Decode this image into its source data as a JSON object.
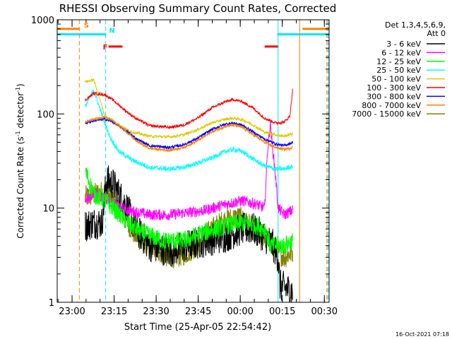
{
  "chart_data": {
    "type": "line",
    "title": "RHESSI Observing Summary Count Rates, Corrected",
    "xlabel": "Start Time (25-Apr-05 22:54:42)",
    "ylabel_main": "Corrected Count Rate (s",
    "ylabel_sup1": "-1",
    "ylabel_mid": " detector",
    "ylabel_sup2": "-1",
    "ylabel_end": ")",
    "yscale": "log",
    "ylim": [
      1,
      1000
    ],
    "x_unit": "minutes since 22:54:42",
    "xlim": [
      0,
      97
    ],
    "y_ticks": [
      {
        "value": 1,
        "label": "1"
      },
      {
        "value": 10,
        "label": "10"
      },
      {
        "value": 100,
        "label": "100"
      },
      {
        "value": 1000,
        "label": "1000"
      }
    ],
    "x_ticks": [
      {
        "t": 5.3,
        "label": "23:00"
      },
      {
        "t": 20.3,
        "label": "23:15"
      },
      {
        "t": 35.3,
        "label": "23:30"
      },
      {
        "t": 50.3,
        "label": "23:45"
      },
      {
        "t": 65.3,
        "label": "00:00"
      },
      {
        "t": 80.3,
        "label": "00:15"
      },
      {
        "t": 95.3,
        "label": "00:30"
      }
    ],
    "legend_header": [
      "Det 1,3,4,5,6,9,",
      "Att 0"
    ],
    "footer_date": "16-Oct-2021 07:18",
    "annotations": [
      {
        "label": "S",
        "color": "#ff8000",
        "x": 9.5
      },
      {
        "label": "N",
        "color": "#00e5ff",
        "x": 18.5
      },
      {
        "label": "F",
        "color": "#ff0000",
        "x": 18.8
      }
    ],
    "flags": [
      {
        "name": "S",
        "color": "#ff8000",
        "y": 800,
        "segments": [
          [
            0,
            8
          ],
          [
            87.5,
            97
          ]
        ]
      },
      {
        "name": "N",
        "color": "#00e5ff",
        "y": 700,
        "segments": [
          [
            0,
            17.5
          ],
          [
            78.5,
            97
          ]
        ]
      },
      {
        "name": "F",
        "color": "#ff0000",
        "y": 520,
        "segments": [
          [
            18.3,
            23.3
          ],
          [
            74,
            79
          ]
        ]
      }
    ],
    "vlines": [
      {
        "x": 7.9,
        "color": "#ff8000",
        "dash": true
      },
      {
        "x": 17.3,
        "color": "#00e5ff",
        "dash": true
      },
      {
        "x": 78.8,
        "color": "#00e5ff",
        "dash": false
      },
      {
        "x": 86.5,
        "color": "#ff8000",
        "dash": false
      },
      {
        "x": 96.2,
        "color": "#ff8000",
        "dash": true
      },
      {
        "x": 96.6,
        "color": "#00e5ff",
        "dash": true
      }
    ],
    "series": [
      {
        "name": "3 - 6 keV",
        "color": "#000000",
        "noise": 0.35,
        "points": [
          [
            10,
            6.5
          ],
          [
            13,
            7
          ],
          [
            16,
            7
          ],
          [
            17.5,
            20
          ],
          [
            20,
            18
          ],
          [
            25,
            10
          ],
          [
            28,
            6
          ],
          [
            33,
            4
          ],
          [
            40,
            3.5
          ],
          [
            47,
            4
          ],
          [
            53,
            4.5
          ],
          [
            60,
            5
          ],
          [
            66,
            6
          ],
          [
            70,
            6
          ],
          [
            74,
            5
          ],
          [
            77,
            4
          ],
          [
            78.8,
            3
          ],
          [
            79.5,
            1.5
          ],
          [
            84,
            1.3
          ]
        ]
      },
      {
        "name": "6 - 12 keV",
        "color": "#ff00ff",
        "noise": 0.12,
        "points": [
          [
            10,
            12
          ],
          [
            13,
            14
          ],
          [
            17,
            13
          ],
          [
            20,
            11
          ],
          [
            25,
            9.5
          ],
          [
            33,
            8.5
          ],
          [
            40,
            8.5
          ],
          [
            47,
            9
          ],
          [
            53,
            9.5
          ],
          [
            60,
            11
          ],
          [
            66,
            12
          ],
          [
            71,
            11
          ],
          [
            74,
            10
          ],
          [
            75,
            40
          ],
          [
            76,
            80
          ],
          [
            78,
            20
          ],
          [
            78.8,
            10
          ],
          [
            81,
            8.5
          ],
          [
            84,
            9.5
          ]
        ]
      },
      {
        "name": "12 - 25 keV",
        "color": "#00ff00",
        "noise": 0.2,
        "points": [
          [
            10,
            25
          ],
          [
            13,
            14
          ],
          [
            17,
            12
          ],
          [
            20,
            10
          ],
          [
            25,
            7
          ],
          [
            30,
            5.5
          ],
          [
            38,
            4.5
          ],
          [
            45,
            4.5
          ],
          [
            52,
            5.5
          ],
          [
            60,
            6.5
          ],
          [
            66,
            7
          ],
          [
            71,
            6.5
          ],
          [
            74,
            6
          ],
          [
            76,
            4
          ],
          [
            78.8,
            4
          ],
          [
            81,
            4
          ],
          [
            84,
            4.5
          ]
        ]
      },
      {
        "name": "25 - 50 keV",
        "color": "#00ffff",
        "noise": 0.05,
        "points": [
          [
            10,
            120
          ],
          [
            13,
            180
          ],
          [
            15,
            120
          ],
          [
            17,
            80
          ],
          [
            19,
            55
          ],
          [
            22,
            40
          ],
          [
            27,
            32
          ],
          [
            33,
            27
          ],
          [
            40,
            26
          ],
          [
            45,
            27
          ],
          [
            50,
            30
          ],
          [
            55,
            34
          ],
          [
            60,
            40
          ],
          [
            63,
            42
          ],
          [
            66,
            40
          ],
          [
            70,
            33
          ],
          [
            74,
            28
          ],
          [
            78,
            26
          ],
          [
            81,
            26
          ],
          [
            84,
            28
          ]
        ]
      },
      {
        "name": "50 - 100 keV",
        "color": "#ddcc00",
        "noise": 0.03,
        "points": [
          [
            10,
            220
          ],
          [
            13,
            230
          ],
          [
            15,
            150
          ],
          [
            17,
            95
          ],
          [
            19,
            85
          ],
          [
            22,
            75
          ],
          [
            27,
            64
          ],
          [
            33,
            58
          ],
          [
            40,
            57
          ],
          [
            45,
            60
          ],
          [
            50,
            68
          ],
          [
            55,
            80
          ],
          [
            60,
            88
          ],
          [
            63,
            90
          ],
          [
            66,
            87
          ],
          [
            70,
            76
          ],
          [
            74,
            64
          ],
          [
            78,
            60
          ],
          [
            81,
            58
          ],
          [
            84,
            62
          ]
        ]
      },
      {
        "name": "100 - 300 keV",
        "color": "#ff0000",
        "noise": 0.03,
        "points": [
          [
            10,
            140
          ],
          [
            13,
            165
          ],
          [
            17,
            160
          ],
          [
            20,
            140
          ],
          [
            24,
            110
          ],
          [
            28,
            90
          ],
          [
            33,
            75
          ],
          [
            40,
            72
          ],
          [
            45,
            76
          ],
          [
            50,
            90
          ],
          [
            55,
            115
          ],
          [
            60,
            135
          ],
          [
            63,
            142
          ],
          [
            66,
            135
          ],
          [
            70,
            115
          ],
          [
            74,
            90
          ],
          [
            78,
            80
          ],
          [
            81,
            82
          ],
          [
            83,
            95
          ],
          [
            84,
            180
          ]
        ]
      },
      {
        "name": "300 - 800 keV",
        "color": "#0000ff",
        "noise": 0.03,
        "points": [
          [
            10,
            80
          ],
          [
            13,
            85
          ],
          [
            17,
            88
          ],
          [
            20,
            82
          ],
          [
            24,
            68
          ],
          [
            28,
            55
          ],
          [
            33,
            46
          ],
          [
            40,
            44
          ],
          [
            45,
            47
          ],
          [
            50,
            55
          ],
          [
            55,
            68
          ],
          [
            60,
            78
          ],
          [
            63,
            80
          ],
          [
            66,
            76
          ],
          [
            70,
            64
          ],
          [
            74,
            54
          ],
          [
            78,
            48
          ],
          [
            81,
            46
          ],
          [
            84,
            50
          ]
        ]
      },
      {
        "name": "800 - 7000 keV",
        "color": "#ff8000",
        "noise": 0.03,
        "points": [
          [
            10,
            82
          ],
          [
            13,
            88
          ],
          [
            17,
            92
          ],
          [
            20,
            85
          ],
          [
            24,
            68
          ],
          [
            28,
            52
          ],
          [
            33,
            43
          ],
          [
            40,
            41
          ],
          [
            45,
            44
          ],
          [
            50,
            52
          ],
          [
            55,
            64
          ],
          [
            60,
            74
          ],
          [
            63,
            76
          ],
          [
            66,
            72
          ],
          [
            70,
            60
          ],
          [
            74,
            50
          ],
          [
            78,
            44
          ],
          [
            81,
            42
          ],
          [
            84,
            44
          ]
        ]
      },
      {
        "name": "7000 - 15000 keV",
        "color": "#808000",
        "noise": 0.25,
        "points": [
          [
            10,
            13
          ],
          [
            13,
            14
          ],
          [
            17,
            15
          ],
          [
            20,
            12
          ],
          [
            24,
            8
          ],
          [
            28,
            5
          ],
          [
            33,
            4
          ],
          [
            40,
            3
          ],
          [
            45,
            3.2
          ],
          [
            50,
            4
          ],
          [
            55,
            6
          ],
          [
            60,
            7.5
          ],
          [
            65,
            8
          ],
          [
            70,
            6
          ],
          [
            74,
            5
          ],
          [
            77,
            4
          ],
          [
            78.8,
            3.5
          ],
          [
            81,
            3
          ],
          [
            84,
            3.5
          ]
        ]
      }
    ]
  }
}
